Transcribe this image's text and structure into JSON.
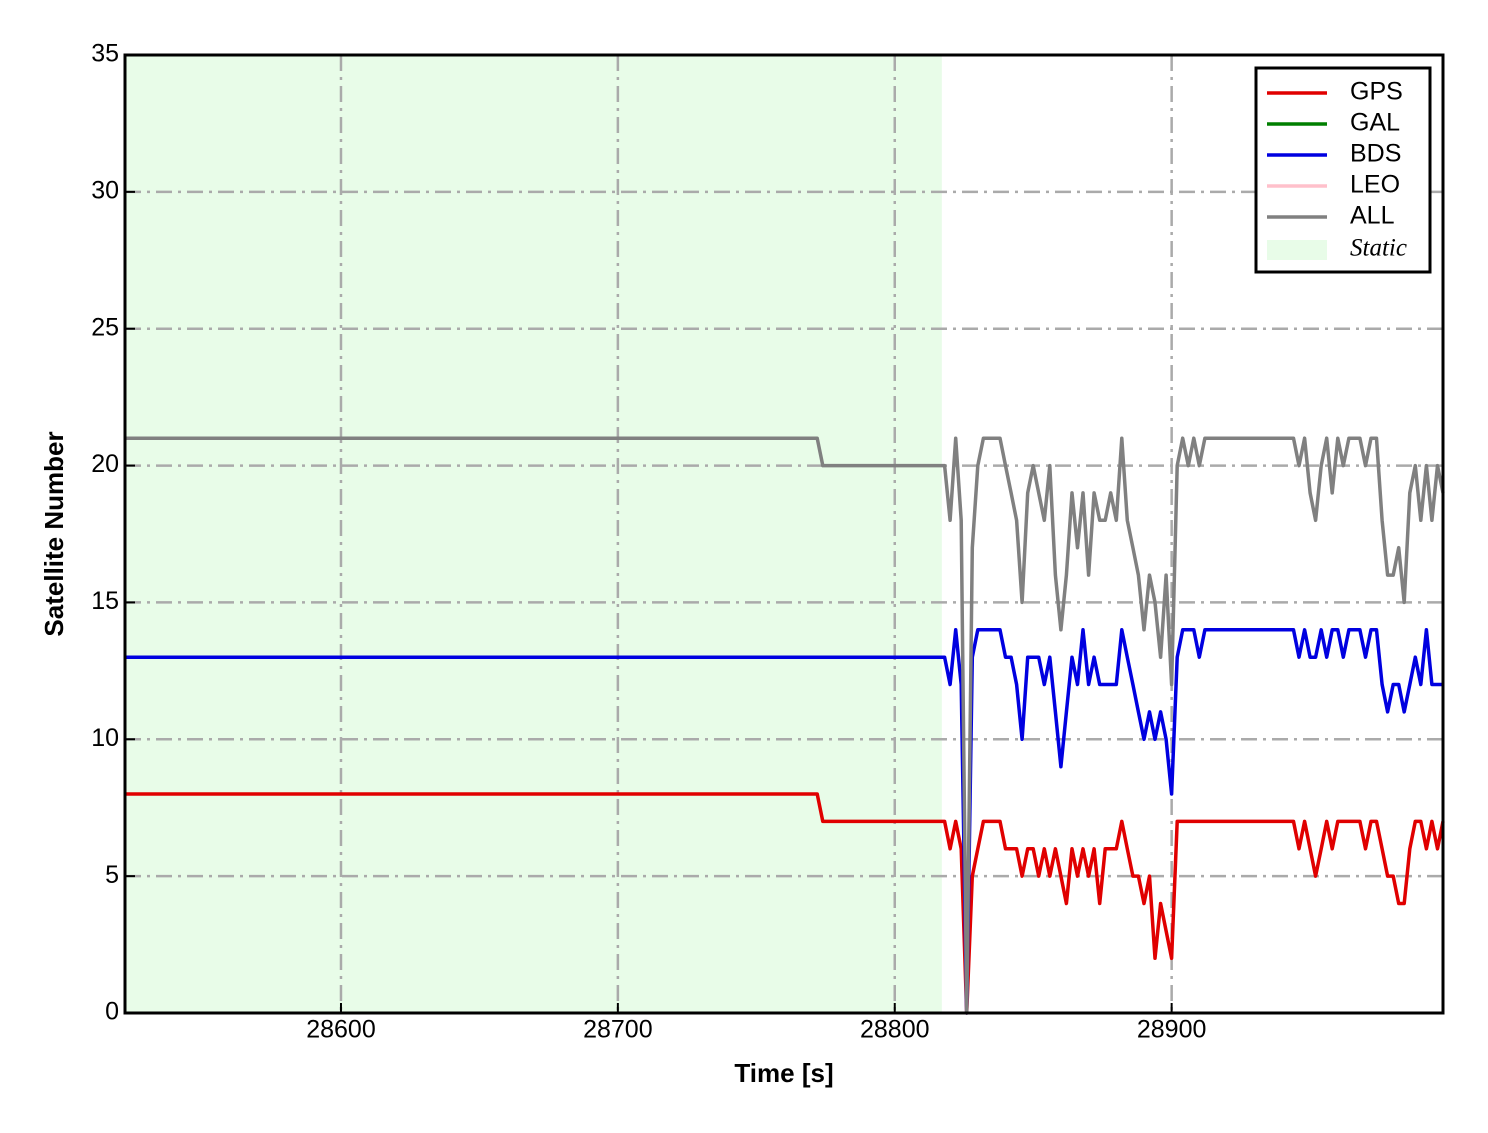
{
  "chart_data": {
    "type": "line",
    "xlabel": "Time [s]",
    "ylabel": "Satellite Number",
    "xlim": [
      28522,
      28998
    ],
    "ylim": [
      0,
      35
    ],
    "xticks": [
      28600,
      28700,
      28800,
      28900
    ],
    "yticks": [
      0,
      5,
      10,
      15,
      20,
      25,
      30,
      35
    ],
    "grid": true,
    "legend": "upper right",
    "spans": [
      {
        "name": "Static",
        "xlim": [
          28522,
          28817
        ],
        "color": "#e8fce8"
      }
    ],
    "x": [
      28522,
      28772,
      28774,
      28818,
      28820,
      28822,
      28824,
      28826,
      28828,
      28830,
      28832,
      28834,
      28836,
      28838,
      28840,
      28842,
      28844,
      28846,
      28848,
      28850,
      28852,
      28854,
      28856,
      28858,
      28860,
      28862,
      28864,
      28866,
      28868,
      28870,
      28872,
      28874,
      28876,
      28878,
      28880,
      28882,
      28884,
      28886,
      28888,
      28890,
      28892,
      28894,
      28896,
      28898,
      28900,
      28902,
      28904,
      28906,
      28908,
      28910,
      28912,
      28914,
      28916,
      28918,
      28920,
      28922,
      28924,
      28926,
      28928,
      28930,
      28932,
      28934,
      28936,
      28938,
      28940,
      28942,
      28944,
      28946,
      28948,
      28950,
      28952,
      28954,
      28956,
      28958,
      28960,
      28962,
      28964,
      28966,
      28968,
      28970,
      28972,
      28974,
      28976,
      28978,
      28980,
      28982,
      28984,
      28986,
      28988,
      28990,
      28992,
      28994,
      28996,
      28998
    ],
    "series": [
      {
        "name": "GPS",
        "color": "#e00000",
        "values": [
          8,
          8,
          7,
          7,
          6,
          7,
          6,
          0,
          5,
          6,
          7,
          7,
          7,
          7,
          6,
          6,
          6,
          5,
          6,
          6,
          5,
          6,
          5,
          6,
          5,
          4,
          6,
          5,
          6,
          5,
          6,
          4,
          6,
          6,
          6,
          7,
          6,
          5,
          5,
          4,
          5,
          2,
          4,
          3,
          2,
          7,
          7,
          7,
          7,
          7,
          7,
          7,
          7,
          7,
          7,
          7,
          7,
          7,
          7,
          7,
          7,
          7,
          7,
          7,
          7,
          7,
          7,
          6,
          7,
          6,
          5,
          6,
          7,
          6,
          7,
          7,
          7,
          7,
          7,
          6,
          7,
          7,
          6,
          5,
          5,
          4,
          4,
          6,
          7,
          7,
          6,
          7,
          6,
          7
        ]
      },
      {
        "name": "GAL",
        "color": "#007f00",
        "values": [
          null,
          null,
          null,
          null,
          null,
          null,
          null,
          null,
          null,
          null,
          null,
          null,
          null,
          null,
          null,
          null,
          null,
          null,
          null,
          null,
          null,
          null,
          null,
          null,
          null,
          null,
          null,
          null,
          null,
          null,
          null,
          null,
          null,
          null,
          null,
          null,
          null,
          null,
          null,
          null,
          null,
          null,
          null,
          null,
          null,
          null,
          null,
          null,
          null,
          null,
          null,
          null,
          null,
          null,
          null,
          null,
          null,
          null,
          null,
          null,
          null,
          null,
          null,
          null,
          null,
          null,
          null,
          null,
          null,
          null,
          null,
          null,
          null,
          null,
          null,
          null,
          null,
          null,
          null,
          null,
          null,
          null,
          null,
          null,
          null,
          null,
          null,
          null,
          null,
          null,
          null,
          null,
          null,
          null
        ]
      },
      {
        "name": "BDS",
        "color": "#0000e0",
        "values": [
          13,
          13,
          13,
          13,
          12,
          14,
          12,
          0,
          13,
          14,
          14,
          14,
          14,
          14,
          13,
          13,
          12,
          10,
          13,
          13,
          13,
          12,
          13,
          11,
          9,
          11,
          13,
          12,
          14,
          12,
          13,
          12,
          12,
          12,
          12,
          14,
          13,
          12,
          11,
          10,
          11,
          10,
          11,
          10,
          8,
          13,
          14,
          14,
          14,
          13,
          14,
          14,
          14,
          14,
          14,
          14,
          14,
          14,
          14,
          14,
          14,
          14,
          14,
          14,
          14,
          14,
          14,
          13,
          14,
          13,
          13,
          14,
          13,
          14,
          14,
          13,
          14,
          14,
          14,
          13,
          14,
          14,
          12,
          11,
          12,
          12,
          11,
          12,
          13,
          12,
          14,
          12,
          12,
          12
        ]
      },
      {
        "name": "LEO",
        "color": "#ffc0cb",
        "values": [
          null,
          null,
          null,
          null,
          null,
          null,
          null,
          null,
          null,
          null,
          null,
          null,
          null,
          null,
          null,
          null,
          null,
          null,
          null,
          null,
          null,
          null,
          null,
          null,
          null,
          null,
          null,
          null,
          null,
          null,
          null,
          null,
          null,
          null,
          null,
          null,
          null,
          null,
          null,
          null,
          null,
          null,
          null,
          null,
          null,
          null,
          null,
          null,
          null,
          null,
          null,
          null,
          null,
          null,
          null,
          null,
          null,
          null,
          null,
          null,
          null,
          null,
          null,
          null,
          null,
          null,
          null,
          null,
          null,
          null,
          null,
          null,
          null,
          null,
          null,
          null,
          null,
          null,
          null,
          null,
          null,
          null,
          null,
          null,
          null,
          null,
          null,
          null,
          null,
          null,
          null,
          null,
          null,
          null
        ]
      },
      {
        "name": "ALL",
        "color": "#808080",
        "values": [
          21,
          21,
          20,
          20,
          18,
          21,
          18,
          0,
          17,
          20,
          21,
          21,
          21,
          21,
          20,
          19,
          18,
          15,
          19,
          20,
          19,
          18,
          20,
          16,
          14,
          16,
          19,
          17,
          19,
          16,
          19,
          18,
          18,
          19,
          18,
          21,
          18,
          17,
          16,
          14,
          16,
          15,
          13,
          16,
          12,
          20,
          21,
          20,
          21,
          20,
          21,
          21,
          21,
          21,
          21,
          21,
          21,
          21,
          21,
          21,
          21,
          21,
          21,
          21,
          21,
          21,
          21,
          20,
          21,
          19,
          18,
          20,
          21,
          19,
          21,
          20,
          21,
          21,
          21,
          20,
          21,
          21,
          18,
          16,
          16,
          17,
          15,
          19,
          20,
          18,
          20,
          18,
          20,
          19
        ]
      }
    ]
  }
}
